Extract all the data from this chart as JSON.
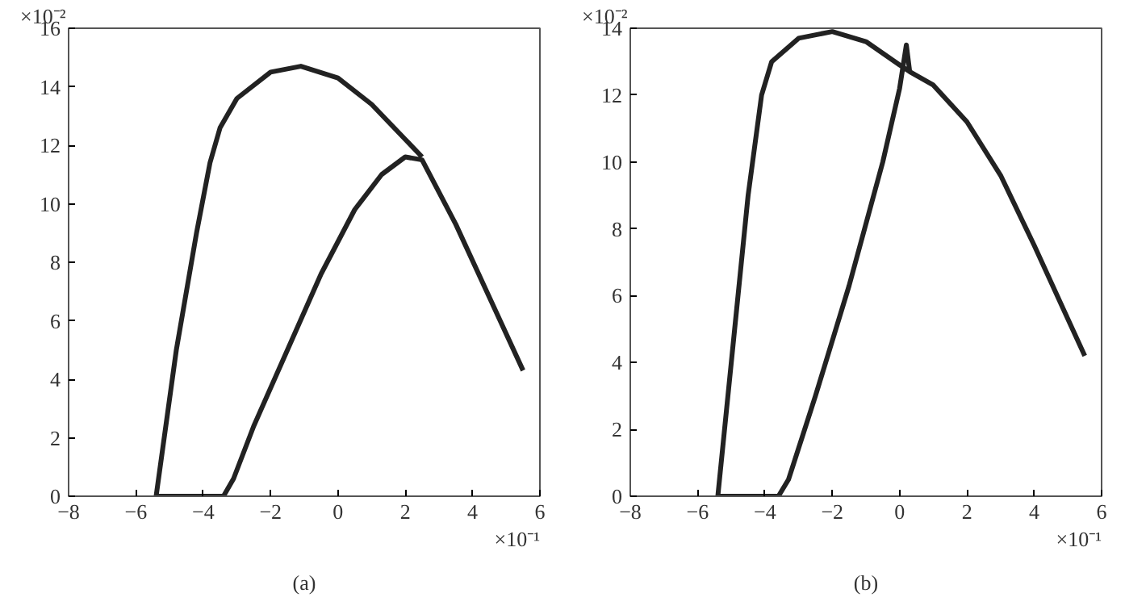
{
  "chart_data": [
    {
      "type": "line",
      "xlim": [
        -8,
        6
      ],
      "xticks": [
        -8,
        -6,
        -4,
        -2,
        0,
        2,
        4,
        6
      ],
      "ylim": [
        0,
        16
      ],
      "yticks": [
        0,
        2,
        4,
        6,
        8,
        10,
        12,
        14,
        16
      ],
      "grid": false,
      "line_style": "solid",
      "series": [
        {
          "color": "#222222",
          "x": [
            5.5,
            4.5,
            3.5,
            2.5,
            2.0,
            1.3,
            0.5,
            -0.5,
            -1.5,
            -2.5,
            -3.1,
            -3.4,
            -5.4,
            -4.8,
            -4.2,
            -3.8,
            -3.5,
            -3,
            -2,
            -1.1,
            0,
            1,
            2,
            2.5
          ],
          "values": [
            4.3,
            6.8,
            9.3,
            11.5,
            11.6,
            11.0,
            9.8,
            7.6,
            5.0,
            2.4,
            0.6,
            0,
            0,
            5,
            9,
            11.4,
            12.6,
            13.6,
            14.5,
            14.7,
            14.3,
            13.4,
            12.2,
            11.6
          ]
        }
      ],
      "annotations": [
        "×10⁻²",
        "×10⁻¹",
        "(a)"
      ]
    },
    {
      "type": "line",
      "xlim": [
        -8,
        6
      ],
      "xticks": [
        -8,
        -6,
        -4,
        -2,
        0,
        2,
        4,
        6
      ],
      "ylim": [
        0,
        14
      ],
      "yticks": [
        0,
        2,
        4,
        6,
        8,
        10,
        12,
        14
      ],
      "grid": false,
      "line_style": "solid",
      "series": [
        {
          "color": "#222222",
          "x": [
            0.3,
            0.2,
            0,
            -0.5,
            -1.5,
            -2.5,
            -3.3,
            -3.6,
            -5.4,
            -4.9,
            -4.5,
            -4.1,
            -3.8,
            -3,
            -2,
            -1,
            0,
            0.3,
            1,
            2,
            3,
            4,
            5,
            5.5
          ],
          "values": [
            12.7,
            13.5,
            12.2,
            10,
            6.3,
            3,
            0.5,
            0,
            0,
            5,
            9,
            12,
            13,
            13.7,
            13.9,
            13.6,
            12.9,
            12.7,
            12.3,
            11.2,
            9.6,
            7.5,
            5.3,
            4.2
          ]
        }
      ],
      "annotations": [
        "×10⁻²",
        "×10⁻¹",
        "(b)"
      ]
    }
  ]
}
